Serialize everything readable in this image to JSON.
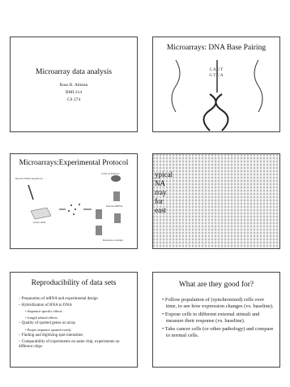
{
  "slides": [
    {
      "title": "Microarray data analysis",
      "lines": [
        "Russ B. Altman",
        "BMI 214",
        "CS 274"
      ]
    },
    {
      "title": "Microarrays: DNA Base Pairing",
      "strands": [
        "C A U T",
        "G T C A"
      ]
    },
    {
      "title": "Microarrays:Experimental Protocol",
      "labels": [
        "Cells of Interest",
        "Known DNA sequences",
        "Isolate mRNA",
        "Glass slide",
        "Reference sample"
      ]
    },
    {
      "fragments": [
        "ypical",
        "NA",
        "rray",
        "for",
        "east"
      ]
    },
    {
      "title": "Reproducibility of data sets",
      "items": [
        {
          "text": "– Preparation of mRNA and experimental design",
          "level": 1
        },
        {
          "text": "– Hybridization of RNA to DNA",
          "level": 1
        },
        {
          "text": "• Sequence specific effects",
          "level": 2
        },
        {
          "text": "• Length related effects",
          "level": 2
        },
        {
          "text": "– Quality of spotted genes on array",
          "level": 1
        },
        {
          "text": "• Proper sequence spotted evenly",
          "level": 2
        },
        {
          "text": "– Finding and digitizing spot intensities",
          "level": 1
        },
        {
          "text": "– Comparability of experiments on same chip, experiments on different chips",
          "level": 1
        }
      ]
    },
    {
      "title": "What are they good for?",
      "items": [
        {
          "text": "• Follow population of (synchronized) cells over time, to see how expression changes (vs. baseline).",
          "level": 1
        },
        {
          "text": "• Expose cells to different external stimuli and measure their response (vs. baseline).",
          "level": 1
        },
        {
          "text": "• Take cancer cells (or other pathology) and compare to normal cells.",
          "level": 1
        }
      ]
    }
  ]
}
